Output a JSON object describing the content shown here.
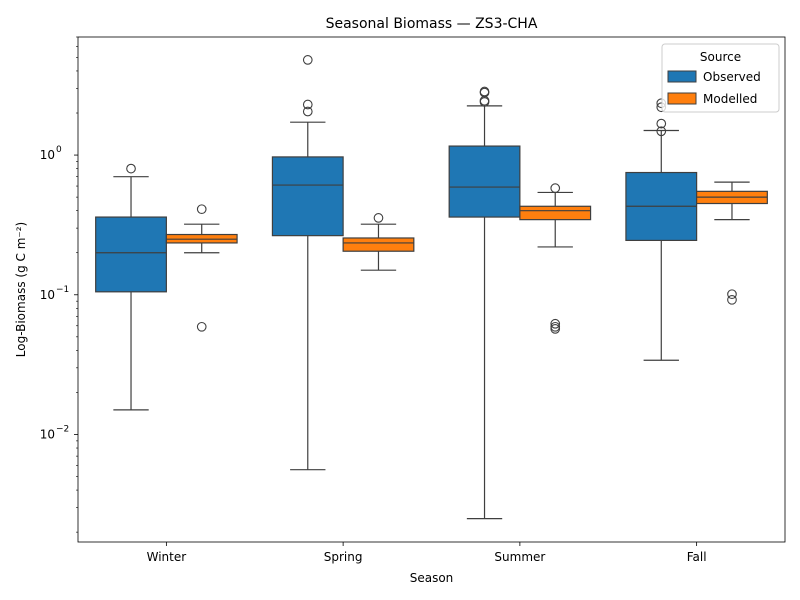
{
  "chart_data": {
    "type": "box",
    "title": "Seasonal Biomass — ZS3-CHA",
    "xlabel": "Season",
    "ylabel": "Log-Biomass (g C m⁻²)",
    "yscale": "log",
    "ylim": [
      0.0017,
      7.0
    ],
    "y_ticks": [
      {
        "value": 0.01,
        "base": "10",
        "exp": "−2"
      },
      {
        "value": 0.1,
        "base": "10",
        "exp": "−1"
      },
      {
        "value": 1,
        "base": "10",
        "exp": "0"
      }
    ],
    "categories": [
      "Winter",
      "Spring",
      "Summer",
      "Fall"
    ],
    "legend": {
      "title": "Source",
      "position": "top-right"
    },
    "series": [
      {
        "name": "Observed",
        "color": "#1f77b4",
        "boxes": [
          {
            "q1": 0.105,
            "median": 0.2,
            "q3": 0.36,
            "whisker_low": 0.015,
            "whisker_high": 0.7,
            "outliers": [
              0.8
            ]
          },
          {
            "q1": 0.265,
            "median": 0.61,
            "q3": 0.97,
            "whisker_low": 0.0056,
            "whisker_high": 1.72,
            "outliers": [
              2.05,
              2.3,
              4.8
            ]
          },
          {
            "q1": 0.36,
            "median": 0.59,
            "q3": 1.16,
            "whisker_low": 0.0025,
            "whisker_high": 2.25,
            "outliers": [
              2.4,
              2.45,
              2.8,
              2.85
            ]
          },
          {
            "q1": 0.245,
            "median": 0.43,
            "q3": 0.75,
            "whisker_low": 0.034,
            "whisker_high": 1.5,
            "outliers": [
              1.48,
              1.68,
              2.2,
              2.35
            ]
          }
        ]
      },
      {
        "name": "Modelled",
        "color": "#ff7f0e",
        "boxes": [
          {
            "q1": 0.235,
            "median": 0.25,
            "q3": 0.27,
            "whisker_low": 0.2,
            "whisker_high": 0.32,
            "outliers": [
              0.059,
              0.41
            ]
          },
          {
            "q1": 0.205,
            "median": 0.235,
            "q3": 0.255,
            "whisker_low": 0.15,
            "whisker_high": 0.32,
            "outliers": [
              0.355
            ]
          },
          {
            "q1": 0.345,
            "median": 0.4,
            "q3": 0.43,
            "whisker_low": 0.22,
            "whisker_high": 0.54,
            "outliers": [
              0.057,
              0.059,
              0.062,
              0.58
            ]
          },
          {
            "q1": 0.45,
            "median": 0.5,
            "q3": 0.55,
            "whisker_low": 0.345,
            "whisker_high": 0.64,
            "outliers": [
              0.092,
              0.101
            ]
          }
        ]
      }
    ]
  }
}
